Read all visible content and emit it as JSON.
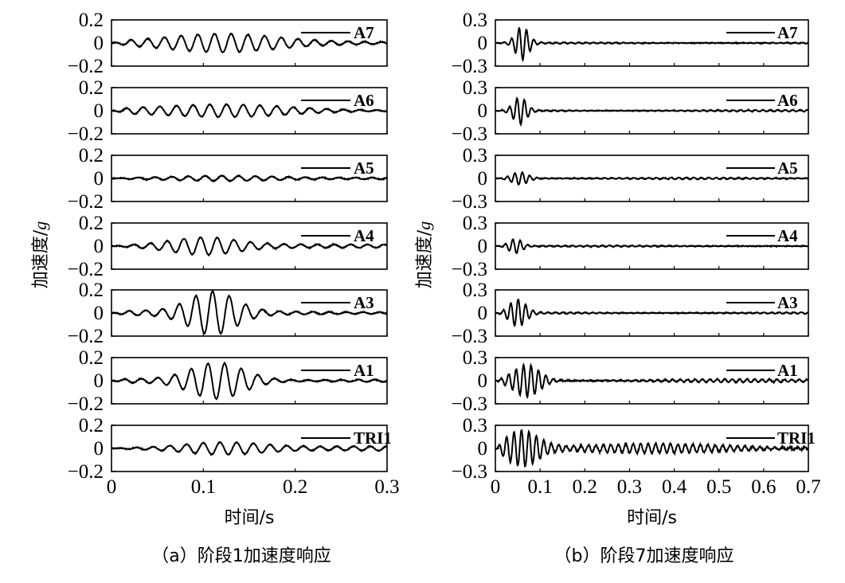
{
  "chart_data": [
    {
      "type": "line",
      "caption": "（a）阶段1加速度响应",
      "xlabel": "时间/s",
      "ylabel_text": "加速度/",
      "ylabel_unit": "g",
      "xlim": [
        0,
        0.3
      ],
      "x_ticks": [
        "0",
        "0.1",
        "0.2",
        "0.3"
      ],
      "x_tick_values": [
        0,
        0.1,
        0.2,
        0.3
      ],
      "ylim": [
        -0.2,
        0.2
      ],
      "y_ticks": [
        "0.2",
        "0",
        "−0.2"
      ],
      "y_tick_values": [
        0.2,
        0,
        -0.2
      ],
      "panels": [
        {
          "name": "A7",
          "peak": 0.065,
          "center": 0.12,
          "width": 0.08,
          "freq": 55,
          "tail": 0.015,
          "noise": 0.003
        },
        {
          "name": "A6",
          "peak": 0.045,
          "center": 0.13,
          "width": 0.09,
          "freq": 55,
          "tail": 0.02,
          "noise": 0.003
        },
        {
          "name": "A5",
          "peak": 0.02,
          "center": 0.12,
          "width": 0.08,
          "freq": 55,
          "tail": 0.01,
          "noise": 0.003
        },
        {
          "name": "A4",
          "peak": 0.065,
          "center": 0.1,
          "width": 0.05,
          "freq": 55,
          "tail": 0.015,
          "noise": 0.003
        },
        {
          "name": "A3",
          "peak": 0.17,
          "center": 0.11,
          "width": 0.035,
          "freq": 55,
          "tail": 0.02,
          "noise": 0.003
        },
        {
          "name": "A1",
          "peak": 0.15,
          "center": 0.115,
          "width": 0.04,
          "freq": 55,
          "tail": 0.03,
          "noise": 0.003
        },
        {
          "name": "TRI1",
          "peak": 0.045,
          "center": 0.12,
          "width": 0.06,
          "freq": 55,
          "tail": 0.02,
          "noise": 0.003
        }
      ]
    },
    {
      "type": "line",
      "caption": "（b）阶段7加速度响应",
      "xlabel": "时间/s",
      "ylabel_text": "加速度/",
      "ylabel_unit": "g",
      "xlim": [
        0,
        0.7
      ],
      "x_ticks": [
        "0",
        "0.1",
        "0.2",
        "0.3",
        "0.4",
        "0.5",
        "0.6",
        "0.7"
      ],
      "x_tick_values": [
        0,
        0.1,
        0.2,
        0.3,
        0.4,
        0.5,
        0.6,
        0.7
      ],
      "ylim": [
        -0.3,
        0.3
      ],
      "y_ticks": [
        "0.3",
        "0",
        "−0.3"
      ],
      "y_tick_values": [
        0.3,
        0,
        -0.3
      ],
      "panels": [
        {
          "name": "A7",
          "peak": 0.21,
          "center": 0.06,
          "width": 0.02,
          "freq": 60,
          "tail": 0.008,
          "noise": 0.004
        },
        {
          "name": "A6",
          "peak": 0.17,
          "center": 0.055,
          "width": 0.02,
          "freq": 60,
          "tail": 0.01,
          "noise": 0.004
        },
        {
          "name": "A5",
          "peak": 0.08,
          "center": 0.055,
          "width": 0.025,
          "freq": 60,
          "tail": 0.01,
          "noise": 0.004
        },
        {
          "name": "A4",
          "peak": 0.09,
          "center": 0.045,
          "width": 0.02,
          "freq": 60,
          "tail": 0.008,
          "noise": 0.004
        },
        {
          "name": "A3",
          "peak": 0.17,
          "center": 0.05,
          "width": 0.025,
          "freq": 60,
          "tail": 0.01,
          "noise": 0.004
        },
        {
          "name": "A1",
          "peak": 0.2,
          "center": 0.07,
          "width": 0.04,
          "freq": 60,
          "tail": 0.02,
          "noise": 0.006
        },
        {
          "name": "TRI1",
          "peak": 0.22,
          "center": 0.06,
          "width": 0.05,
          "freq": 60,
          "tail": 0.06,
          "noise": 0.01
        }
      ]
    }
  ]
}
